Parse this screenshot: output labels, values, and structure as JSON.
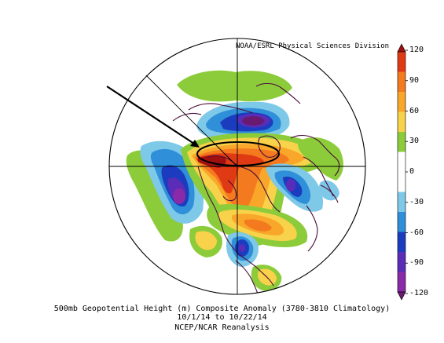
{
  "header": {
    "provider": "NOAA/ESRL Physical Sciences Division"
  },
  "caption": {
    "line1": "500mb Geopotential Height (m) Composite Anomaly (3780-3810 Climatology)",
    "line2": "10/1/14  to 10/22/14",
    "line3": "NCEP/NCAR Reanalysis"
  },
  "colorbar": {
    "ticks": [
      "120",
      "90",
      "60",
      "30",
      "0",
      "-30",
      "-60",
      "-90",
      "-120"
    ],
    "colors": [
      "#a01010",
      "#e03a15",
      "#f47a1f",
      "#f9a72a",
      "#f8d24a",
      "#8ccc3a",
      "#ffffff",
      "#ffffff",
      "#7ec8e8",
      "#2f8fd8",
      "#1c3cc0",
      "#5a2db8",
      "#8a2aa8",
      "#6a1a70"
    ]
  },
  "palette": {
    "land_outline": "#4a0d3a",
    "grid": "#000000",
    "arrow": "#000000"
  }
}
